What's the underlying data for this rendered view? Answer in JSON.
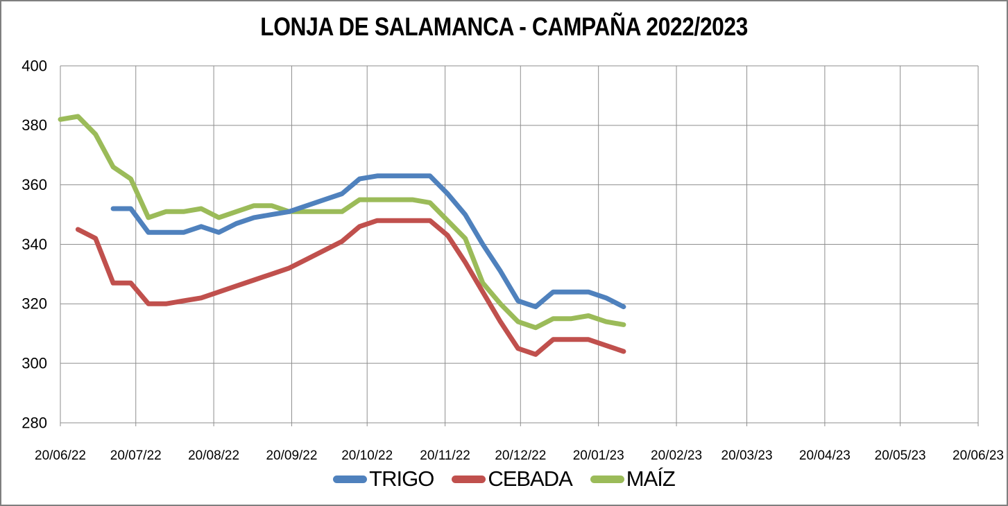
{
  "window": {
    "background": "#FFFFFF",
    "border_color": "#7F7F7F",
    "gridline_color": "#8E8E8E",
    "text_color": "#000000"
  },
  "chart_data": {
    "type": "line",
    "title": "LONJA DE SALAMANCA - CAMPAÑA 2022/2023",
    "grid": "on",
    "legend_position": "bottom",
    "x_axis": {
      "tick_labels": [
        "20/06/22",
        "20/07/22",
        "20/08/22",
        "20/09/22",
        "20/10/22",
        "20/11/22",
        "20/12/22",
        "20/01/23",
        "20/02/23",
        "20/03/23",
        "20/04/23",
        "20/05/23",
        "20/06/23"
      ],
      "range_start": "20/06/22",
      "range_end": "20/06/23"
    },
    "y_axis": {
      "min": 280,
      "max": 400,
      "step": 20,
      "tick_labels": [
        "400",
        "380",
        "360",
        "340",
        "320",
        "300",
        "280"
      ]
    },
    "weekly_dates": [
      "20/06/22",
      "27/06/22",
      "04/07/22",
      "11/07/22",
      "18/07/22",
      "25/07/22",
      "01/08/22",
      "08/08/22",
      "15/08/22",
      "22/08/22",
      "29/08/22",
      "05/09/22",
      "12/09/22",
      "19/09/22",
      "26/09/22",
      "03/10/22",
      "10/10/22",
      "17/10/22",
      "24/10/22",
      "31/10/22",
      "07/11/22",
      "14/11/22",
      "21/11/22",
      "28/11/22",
      "05/12/22",
      "12/12/22",
      "19/12/22",
      "26/12/22",
      "02/01/23",
      "09/01/23",
      "16/01/23",
      "23/01/23",
      "30/01/23"
    ],
    "series": [
      {
        "name": "TRIGO",
        "color": "#4F81BD",
        "values": [
          null,
          null,
          null,
          352,
          352,
          344,
          344,
          344,
          346,
          344,
          347,
          349,
          350,
          351,
          353,
          355,
          357,
          362,
          363,
          363,
          363,
          363,
          357,
          350,
          340,
          331,
          321,
          319,
          324,
          324,
          324,
          322,
          319
        ]
      },
      {
        "name": "CEBADA",
        "color": "#C0504D",
        "values": [
          null,
          345,
          342,
          327,
          327,
          320,
          320,
          321,
          322,
          324,
          326,
          328,
          330,
          332,
          335,
          338,
          341,
          346,
          348,
          348,
          348,
          348,
          343,
          334,
          324,
          314,
          305,
          303,
          308,
          308,
          308,
          306,
          304
        ]
      },
      {
        "name": "MAÍZ",
        "color": "#9BBB59",
        "values": [
          382,
          383,
          377,
          366,
          362,
          349,
          351,
          351,
          352,
          349,
          351,
          353,
          353,
          351,
          351,
          351,
          351,
          355,
          355,
          355,
          355,
          354,
          348,
          342,
          327,
          320,
          314,
          312,
          315,
          315,
          316,
          314,
          313
        ]
      }
    ]
  }
}
